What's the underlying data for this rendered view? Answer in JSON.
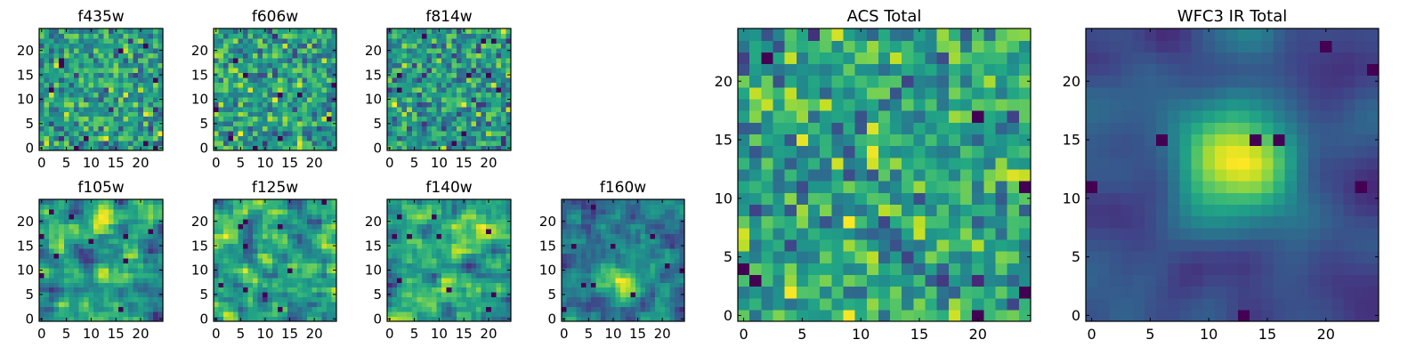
{
  "figure": {
    "colormap": "viridis"
  },
  "chart_data": [
    {
      "type": "heatmap",
      "title": "f435w",
      "xlim": [
        0,
        25
      ],
      "ylim": [
        0,
        25
      ],
      "xticks": [
        0,
        5,
        10,
        15,
        20
      ],
      "yticks": [
        0,
        5,
        10,
        15,
        20
      ],
      "grid": false,
      "character": "uniform pixel noise"
    },
    {
      "type": "heatmap",
      "title": "f606w",
      "xlim": [
        0,
        25
      ],
      "ylim": [
        0,
        25
      ],
      "xticks": [
        0,
        5,
        10,
        15,
        20
      ],
      "yticks": [
        0,
        5,
        10,
        15,
        20
      ],
      "grid": false,
      "character": "uniform pixel noise"
    },
    {
      "type": "heatmap",
      "title": "f814w",
      "xlim": [
        0,
        25
      ],
      "ylim": [
        0,
        25
      ],
      "xticks": [
        0,
        5,
        10,
        15,
        20
      ],
      "yticks": [
        0,
        5,
        10,
        15,
        20
      ],
      "grid": false,
      "character": "uniform pixel noise"
    },
    {
      "type": "heatmap",
      "title": "f105w",
      "xlim": [
        0,
        25
      ],
      "ylim": [
        0,
        25
      ],
      "xticks": [
        0,
        5,
        10,
        15,
        20
      ],
      "yticks": [
        0,
        5,
        10,
        15,
        20
      ],
      "grid": false,
      "character": "correlated noise"
    },
    {
      "type": "heatmap",
      "title": "f125w",
      "xlim": [
        0,
        25
      ],
      "ylim": [
        0,
        25
      ],
      "xticks": [
        0,
        5,
        10,
        15,
        20
      ],
      "yticks": [
        0,
        5,
        10,
        15,
        20
      ],
      "grid": false,
      "character": "correlated noise"
    },
    {
      "type": "heatmap",
      "title": "f140w",
      "xlim": [
        0,
        25
      ],
      "ylim": [
        0,
        25
      ],
      "xticks": [
        0,
        5,
        10,
        15,
        20
      ],
      "yticks": [
        0,
        5,
        10,
        15,
        20
      ],
      "grid": false,
      "character": "correlated noise"
    },
    {
      "type": "heatmap",
      "title": "f160w",
      "xlim": [
        0,
        25
      ],
      "ylim": [
        0,
        25
      ],
      "xticks": [
        0,
        5,
        10,
        15,
        20
      ],
      "yticks": [
        0,
        5,
        10,
        15,
        20
      ],
      "grid": false,
      "character": "correlated noise, bright blob near (12,8)"
    },
    {
      "type": "heatmap",
      "title": "ACS Total",
      "xlim": [
        0,
        25
      ],
      "ylim": [
        0,
        25
      ],
      "xticks": [
        0,
        5,
        10,
        15,
        20
      ],
      "yticks": [
        0,
        5,
        10,
        15,
        20
      ],
      "grid": false,
      "character": "pixel noise"
    },
    {
      "type": "heatmap",
      "title": "WFC3 IR Total",
      "xlim": [
        0,
        25
      ],
      "ylim": [
        0,
        25
      ],
      "xticks": [
        0,
        5,
        10,
        15,
        20
      ],
      "yticks": [
        0,
        5,
        10,
        15,
        20
      ],
      "grid": false,
      "character": "smooth source centred near (12,13)"
    }
  ]
}
